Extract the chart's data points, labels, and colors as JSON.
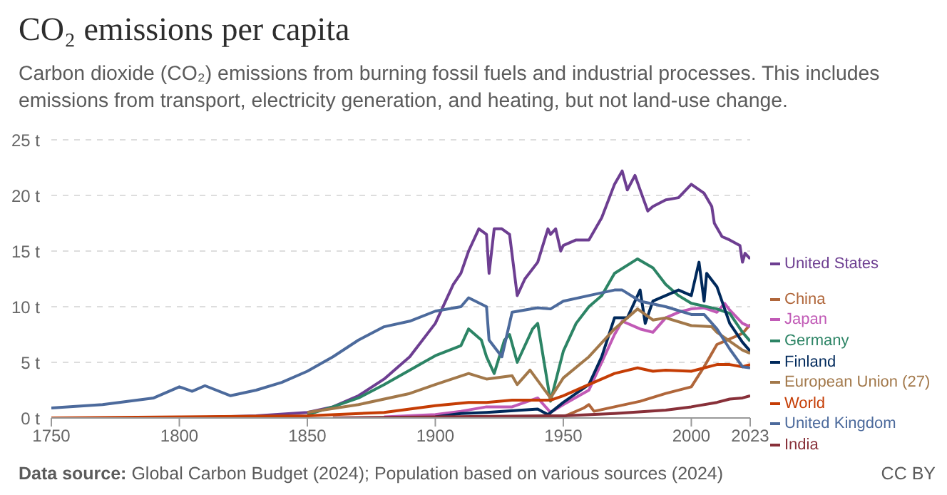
{
  "chart_data": {
    "type": "line",
    "title": "CO₂ emissions per capita",
    "subtitle": "Carbon dioxide (CO₂) emissions from burning fossil fuels and industrial processes. This includes emissions from transport, electricity generation, and heating, but not land-use change.",
    "annotations": [
      "Data source: Global Carbon Budget (2024); Population based on various sources (2024)",
      "CC BY"
    ],
    "xlim": [
      1750,
      2023
    ],
    "xticks": [
      1750,
      1800,
      1850,
      1900,
      1950,
      2000,
      2023
    ],
    "ylim": [
      0,
      25
    ],
    "yticks": [
      {
        "value": 0,
        "label": "0 t"
      },
      {
        "value": 5,
        "label": "5 t"
      },
      {
        "value": 10,
        "label": "10 t"
      },
      {
        "value": 15,
        "label": "15 t"
      },
      {
        "value": 20,
        "label": "20 t"
      },
      {
        "value": 25,
        "label": "25 t"
      }
    ],
    "grid": "y",
    "legend": "right",
    "series": [
      {
        "name": "United States",
        "color": "#6d3e91",
        "x": [
          1800,
          1830,
          1850,
          1860,
          1870,
          1880,
          1890,
          1900,
          1907,
          1910,
          1913,
          1917,
          1920,
          1921,
          1923,
          1926,
          1929,
          1932,
          1935,
          1940,
          1944,
          1945,
          1947,
          1949,
          1950,
          1955,
          1960,
          1965,
          1970,
          1973,
          1975,
          1978,
          1980,
          1983,
          1985,
          1990,
          1995,
          2000,
          2005,
          2008,
          2009,
          2012,
          2015,
          2019,
          2020,
          2021,
          2023
        ],
        "values": [
          0,
          0.2,
          0.5,
          1,
          2,
          3.5,
          5.5,
          8.5,
          12,
          13,
          15,
          17,
          16.5,
          13,
          17,
          17,
          16.5,
          11,
          12.5,
          14,
          17,
          16.5,
          17,
          15,
          15.5,
          16,
          16,
          18,
          21,
          22.2,
          20.5,
          21.8,
          20.5,
          18.6,
          19,
          19.6,
          19.8,
          21,
          20.2,
          19,
          17.5,
          16.3,
          16,
          15.5,
          14,
          14.8,
          14.3
        ]
      },
      {
        "name": "China",
        "color": "#b0663a",
        "x": [
          1900,
          1950,
          1958,
          1960,
          1962,
          1970,
          1980,
          1990,
          2000,
          2005,
          2010,
          2015,
          2020,
          2023
        ],
        "values": [
          0,
          0.1,
          0.9,
          1.2,
          0.6,
          1,
          1.5,
          2.2,
          2.8,
          4.6,
          6.6,
          7.1,
          7.6,
          8.4
        ]
      },
      {
        "name": "Japan",
        "color": "#c15ab6",
        "x": [
          1880,
          1900,
          1910,
          1920,
          1930,
          1940,
          1945,
          1950,
          1960,
          1970,
          1973,
          1980,
          1985,
          1990,
          1995,
          2000,
          2005,
          2010,
          2013,
          2015,
          2020,
          2023
        ],
        "values": [
          0.1,
          0.3,
          0.6,
          1,
          1,
          1.8,
          0.5,
          1.2,
          2.5,
          7.5,
          8.7,
          8,
          7.7,
          9,
          9.5,
          9.8,
          9.9,
          9.5,
          10.3,
          9.7,
          8.5,
          8.2
        ]
      },
      {
        "name": "Germany",
        "color": "#2c8465",
        "x": [
          1850,
          1860,
          1870,
          1880,
          1890,
          1900,
          1910,
          1913,
          1918,
          1920,
          1923,
          1927,
          1929,
          1932,
          1938,
          1940,
          1945,
          1950,
          1955,
          1960,
          1965,
          1970,
          1979,
          1985,
          1990,
          1995,
          2000,
          2010,
          2015,
          2020,
          2023
        ],
        "values": [
          0.3,
          1,
          1.8,
          3,
          4.3,
          5.6,
          6.5,
          8,
          7,
          5.5,
          4,
          7,
          7.5,
          5,
          8,
          8.5,
          1.5,
          6,
          8.5,
          10,
          11,
          13,
          14.3,
          13.5,
          12,
          11,
          10.3,
          9.8,
          9.4,
          7.7,
          6.9
        ]
      },
      {
        "name": "Finland",
        "color": "#00295b",
        "x": [
          1900,
          1910,
          1920,
          1940,
          1944,
          1950,
          1960,
          1965,
          1970,
          1975,
          1980,
          1982,
          1985,
          1990,
          1995,
          2000,
          2003,
          2005,
          2006,
          2010,
          2015,
          2020,
          2023
        ],
        "values": [
          0.1,
          0.4,
          0.5,
          0.8,
          0.3,
          1.4,
          3,
          5.5,
          9,
          9,
          11.5,
          8.5,
          10.5,
          11,
          11.5,
          11,
          14,
          10.5,
          13,
          11.8,
          8.5,
          6.8,
          6
        ]
      },
      {
        "name": "European Union (27)",
        "color": "#a2784a",
        "x": [
          1850,
          1870,
          1890,
          1900,
          1913,
          1920,
          1930,
          1932,
          1937,
          1945,
          1950,
          1960,
          1970,
          1979,
          1985,
          1990,
          2000,
          2008,
          2010,
          2015,
          2020,
          2023
        ],
        "values": [
          0.5,
          1.2,
          2.2,
          3,
          4,
          3.5,
          3.8,
          3,
          4.3,
          1.8,
          3.6,
          5.5,
          8,
          9.8,
          8.8,
          9,
          8.3,
          8.2,
          7.7,
          6.9,
          6.1,
          5.8
        ]
      },
      {
        "name": "World",
        "color": "#c53d05",
        "x": [
          1750,
          1800,
          1850,
          1880,
          1900,
          1913,
          1920,
          1930,
          1945,
          1950,
          1960,
          1970,
          1979,
          1985,
          1990,
          2000,
          2010,
          2015,
          2020,
          2023
        ],
        "values": [
          0,
          0.1,
          0.2,
          0.5,
          1.1,
          1.4,
          1.4,
          1.6,
          1.6,
          2,
          3,
          4,
          4.5,
          4.2,
          4.3,
          4.2,
          4.8,
          4.8,
          4.6,
          4.8
        ]
      },
      {
        "name": "United Kingdom",
        "color": "#4c6a9c",
        "x": [
          1750,
          1770,
          1790,
          1800,
          1805,
          1810,
          1820,
          1830,
          1840,
          1850,
          1860,
          1870,
          1880,
          1890,
          1900,
          1910,
          1913,
          1920,
          1921,
          1926,
          1930,
          1940,
          1945,
          1950,
          1960,
          1970,
          1973,
          1980,
          1990,
          2000,
          2005,
          2010,
          2015,
          2020,
          2023
        ],
        "values": [
          0.9,
          1.2,
          1.8,
          2.8,
          2.4,
          2.9,
          2,
          2.5,
          3.2,
          4.2,
          5.5,
          7,
          8.2,
          8.7,
          9.6,
          10,
          10.8,
          10,
          7,
          5.5,
          9.5,
          9.9,
          9.8,
          10.5,
          11,
          11.5,
          11.5,
          10.5,
          10,
          9.3,
          9.3,
          8,
          6.2,
          4.6,
          4.5
        ]
      },
      {
        "name": "India",
        "color": "#883039",
        "x": [
          1860,
          1900,
          1950,
          1970,
          1990,
          2000,
          2010,
          2015,
          2020,
          2023
        ],
        "values": [
          0,
          0.1,
          0.2,
          0.4,
          0.7,
          1,
          1.4,
          1.7,
          1.8,
          2
        ]
      }
    ]
  }
}
